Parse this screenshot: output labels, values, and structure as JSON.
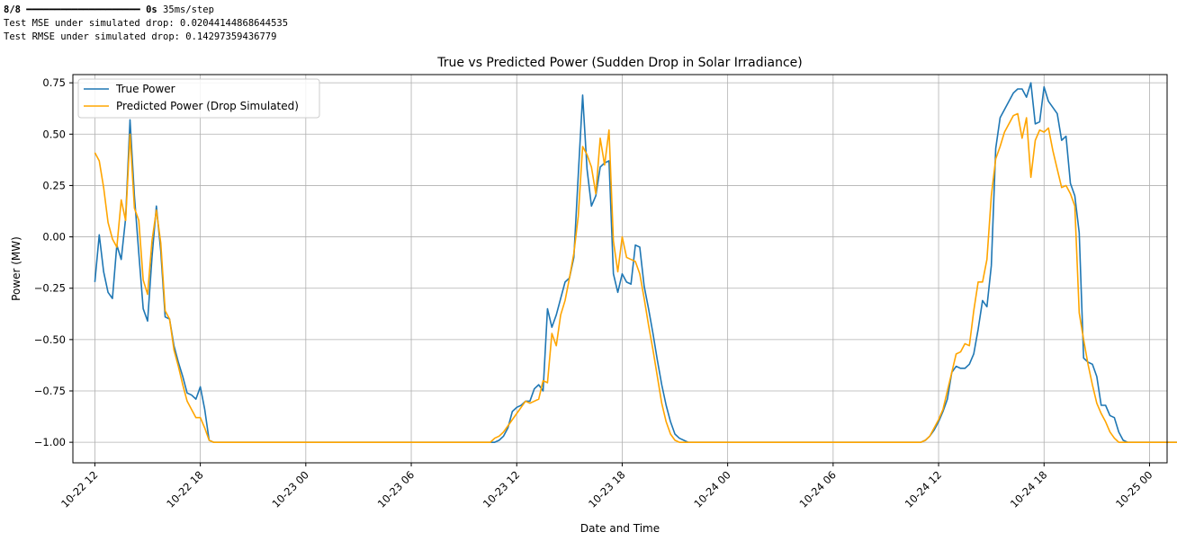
{
  "console": {
    "line1_progress": "8/8",
    "line1_bar": "━━━━━━━━━━━━━━━━━━━━",
    "line1_time": "0s",
    "line1_rate": "35ms/step",
    "line2": "Test MSE under simulated drop: 0.02044144868644535",
    "line3": "Test RMSE under simulated drop: 0.14297359436779"
  },
  "chart_data": {
    "type": "line",
    "title": "True vs Predicted Power (Sudden Drop in Solar Irradiance)",
    "xlabel": "Date and Time",
    "ylabel": "Power (MW)",
    "ylim": [
      -1.1,
      0.79
    ],
    "xlim": [
      "10-22 10:45",
      "10-25 01:00"
    ],
    "grid": true,
    "legend_position": "top-left",
    "x_ticks": [
      "10-22 12",
      "10-22 18",
      "10-23 00",
      "10-23 06",
      "10-23 12",
      "10-23 18",
      "10-24 00",
      "10-24 06",
      "10-24 12",
      "10-24 18",
      "10-25 00"
    ],
    "y_ticks": [
      "0.75",
      "0.50",
      "0.25",
      "0.00",
      "−0.25",
      "−0.50",
      "−0.75",
      "−1.00"
    ],
    "x_start": "10-22 12:00",
    "x_step_minutes": 15,
    "series": [
      {
        "name": "True Power",
        "color": "#1f77b4",
        "values": [
          -0.22,
          0.01,
          -0.17,
          -0.27,
          -0.3,
          -0.04,
          -0.11,
          0.09,
          0.57,
          0.2,
          -0.08,
          -0.35,
          -0.41,
          -0.1,
          0.15,
          -0.07,
          -0.39,
          -0.4,
          -0.53,
          -0.61,
          -0.68,
          -0.76,
          -0.77,
          -0.79,
          -0.73,
          -0.84,
          -0.99,
          -1.0,
          -1.0,
          -1.0,
          -1.0,
          -1.0,
          -1.0,
          -1.0,
          -1.0,
          -1.0,
          -1.0,
          -1.0,
          -1.0,
          -1.0,
          -1.0,
          -1.0,
          -1.0,
          -1.0,
          -1.0,
          -1.0,
          -1.0,
          -1.0,
          -1.0,
          -1.0,
          -1.0,
          -1.0,
          -1.0,
          -1.0,
          -1.0,
          -1.0,
          -1.0,
          -1.0,
          -1.0,
          -1.0,
          -1.0,
          -1.0,
          -1.0,
          -1.0,
          -1.0,
          -1.0,
          -1.0,
          -1.0,
          -1.0,
          -1.0,
          -1.0,
          -1.0,
          -1.0,
          -1.0,
          -1.0,
          -1.0,
          -1.0,
          -1.0,
          -1.0,
          -1.0,
          -1.0,
          -1.0,
          -1.0,
          -1.0,
          -1.0,
          -1.0,
          -1.0,
          -1.0,
          -1.0,
          -1.0,
          -1.0,
          -1.0,
          -0.99,
          -0.97,
          -0.93,
          -0.85,
          -0.83,
          -0.82,
          -0.8,
          -0.8,
          -0.74,
          -0.72,
          -0.75,
          -0.35,
          -0.44,
          -0.38,
          -0.3,
          -0.22,
          -0.2,
          -0.1,
          0.3,
          0.69,
          0.33,
          0.15,
          0.2,
          0.34,
          0.36,
          0.37,
          -0.18,
          -0.27,
          -0.18,
          -0.22,
          -0.23,
          -0.04,
          -0.05,
          -0.24,
          -0.35,
          -0.47,
          -0.6,
          -0.72,
          -0.82,
          -0.9,
          -0.96,
          -0.98,
          -0.99,
          -1.0,
          -1.0,
          -1.0,
          -1.0,
          -1.0,
          -1.0,
          -1.0,
          -1.0,
          -1.0,
          -1.0,
          -1.0,
          -1.0,
          -1.0,
          -1.0,
          -1.0,
          -1.0,
          -1.0,
          -1.0,
          -1.0,
          -1.0,
          -1.0,
          -1.0,
          -1.0,
          -1.0,
          -1.0,
          -1.0,
          -1.0,
          -1.0,
          -1.0,
          -1.0,
          -1.0,
          -1.0,
          -1.0,
          -1.0,
          -1.0,
          -1.0,
          -1.0,
          -1.0,
          -1.0,
          -1.0,
          -1.0,
          -1.0,
          -1.0,
          -1.0,
          -1.0,
          -1.0,
          -1.0,
          -1.0,
          -1.0,
          -1.0,
          -1.0,
          -1.0,
          -1.0,
          -1.0,
          -0.99,
          -0.97,
          -0.94,
          -0.9,
          -0.85,
          -0.79,
          -0.66,
          -0.63,
          -0.64,
          -0.64,
          -0.62,
          -0.57,
          -0.45,
          -0.31,
          -0.34,
          -0.14,
          0.43,
          0.58,
          0.62,
          0.66,
          0.7,
          0.72,
          0.72,
          0.68,
          0.75,
          0.55,
          0.56,
          0.73,
          0.66,
          0.63,
          0.6,
          0.47,
          0.49,
          0.26,
          0.2,
          0.02,
          -0.59,
          -0.61,
          -0.62,
          -0.68,
          -0.82,
          -0.82,
          -0.87,
          -0.88,
          -0.95,
          -0.99,
          -1.0,
          -1.0,
          -1.0,
          -1.0,
          -1.0,
          -1.0,
          -1.0,
          -1.0,
          -1.0,
          -1.0,
          -1.0,
          -1.0,
          -1.0,
          -1.0,
          -1.0,
          -1.0,
          -1.0,
          -1.0,
          -1.0,
          -1.0,
          -1.0,
          -1.0,
          -1.0
        ]
      },
      {
        "name": "Predicted Power (Drop Simulated)",
        "color": "#ffa500",
        "values": [
          0.41,
          0.37,
          0.24,
          0.07,
          -0.01,
          -0.05,
          0.18,
          0.08,
          0.5,
          0.14,
          0.08,
          -0.21,
          -0.28,
          -0.02,
          0.13,
          -0.03,
          -0.36,
          -0.4,
          -0.55,
          -0.63,
          -0.72,
          -0.8,
          -0.84,
          -0.88,
          -0.88,
          -0.93,
          -0.99,
          -1.0,
          -1.0,
          -1.0,
          -1.0,
          -1.0,
          -1.0,
          -1.0,
          -1.0,
          -1.0,
          -1.0,
          -1.0,
          -1.0,
          -1.0,
          -1.0,
          -1.0,
          -1.0,
          -1.0,
          -1.0,
          -1.0,
          -1.0,
          -1.0,
          -1.0,
          -1.0,
          -1.0,
          -1.0,
          -1.0,
          -1.0,
          -1.0,
          -1.0,
          -1.0,
          -1.0,
          -1.0,
          -1.0,
          -1.0,
          -1.0,
          -1.0,
          -1.0,
          -1.0,
          -1.0,
          -1.0,
          -1.0,
          -1.0,
          -1.0,
          -1.0,
          -1.0,
          -1.0,
          -1.0,
          -1.0,
          -1.0,
          -1.0,
          -1.0,
          -1.0,
          -1.0,
          -1.0,
          -1.0,
          -1.0,
          -1.0,
          -1.0,
          -1.0,
          -1.0,
          -1.0,
          -1.0,
          -1.0,
          -1.0,
          -0.98,
          -0.97,
          -0.95,
          -0.92,
          -0.89,
          -0.86,
          -0.83,
          -0.8,
          -0.81,
          -0.8,
          -0.79,
          -0.7,
          -0.71,
          -0.47,
          -0.53,
          -0.38,
          -0.31,
          -0.2,
          -0.08,
          0.1,
          0.44,
          0.4,
          0.34,
          0.21,
          0.48,
          0.35,
          0.52,
          -0.02,
          -0.17,
          0.0,
          -0.1,
          -0.11,
          -0.12,
          -0.18,
          -0.3,
          -0.43,
          -0.55,
          -0.68,
          -0.81,
          -0.9,
          -0.96,
          -0.99,
          -1.0,
          -1.0,
          -1.0,
          -1.0,
          -1.0,
          -1.0,
          -1.0,
          -1.0,
          -1.0,
          -1.0,
          -1.0,
          -1.0,
          -1.0,
          -1.0,
          -1.0,
          -1.0,
          -1.0,
          -1.0,
          -1.0,
          -1.0,
          -1.0,
          -1.0,
          -1.0,
          -1.0,
          -1.0,
          -1.0,
          -1.0,
          -1.0,
          -1.0,
          -1.0,
          -1.0,
          -1.0,
          -1.0,
          -1.0,
          -1.0,
          -1.0,
          -1.0,
          -1.0,
          -1.0,
          -1.0,
          -1.0,
          -1.0,
          -1.0,
          -1.0,
          -1.0,
          -1.0,
          -1.0,
          -1.0,
          -1.0,
          -1.0,
          -1.0,
          -1.0,
          -1.0,
          -1.0,
          -1.0,
          -1.0,
          -0.99,
          -0.97,
          -0.93,
          -0.89,
          -0.84,
          -0.75,
          -0.66,
          -0.57,
          -0.56,
          -0.52,
          -0.53,
          -0.36,
          -0.22,
          -0.22,
          -0.11,
          0.2,
          0.38,
          0.44,
          0.51,
          0.55,
          0.59,
          0.6,
          0.48,
          0.58,
          0.29,
          0.47,
          0.52,
          0.51,
          0.53,
          0.42,
          0.33,
          0.24,
          0.25,
          0.21,
          0.15,
          -0.37,
          -0.5,
          -0.62,
          -0.72,
          -0.81,
          -0.86,
          -0.9,
          -0.95,
          -0.98,
          -1.0,
          -1.0,
          -1.0,
          -1.0,
          -1.0,
          -1.0,
          -1.0,
          -1.0,
          -1.0,
          -1.0,
          -1.0,
          -1.0,
          -1.0,
          -1.0,
          -1.0,
          -1.0,
          -1.0,
          -1.0,
          -1.0,
          -1.0,
          -1.0,
          -1.0,
          -1.0,
          -1.0
        ]
      }
    ]
  }
}
